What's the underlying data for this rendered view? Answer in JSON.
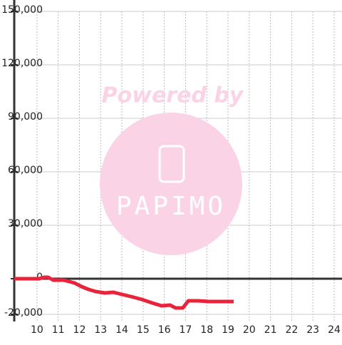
{
  "chart_data": {
    "type": "line",
    "watermark": {
      "line1": "Powered by",
      "line2": "PAPIMO"
    },
    "x": [
      8.93,
      10.1,
      10.33,
      10.53,
      10.77,
      11.27,
      11.77,
      12.1,
      12.43,
      12.77,
      13.2,
      13.6,
      14.0,
      14.43,
      14.93,
      15.43,
      15.87,
      16.27,
      16.53,
      16.87,
      17.13,
      17.6,
      18.1,
      19.27
    ],
    "series": [
      {
        "color": "#e8233a",
        "values": [
          0,
          0,
          800,
          800,
          -800,
          -800,
          -2400,
          -4400,
          -6000,
          -7200,
          -8000,
          -7600,
          -8800,
          -10000,
          -11600,
          -13600,
          -15200,
          -14800,
          -16400,
          -16400,
          -12400,
          -12400,
          -12800,
          -12800
        ]
      }
    ],
    "xlim": [
      8.93,
      24.37
    ],
    "xticks": [
      10,
      11,
      12,
      13,
      14,
      15,
      16,
      17,
      18,
      19,
      20,
      21,
      22,
      23,
      24
    ],
    "ylim": [
      -24000,
      150000
    ],
    "yticks": [
      {
        "value": -20000,
        "label": "-20,000"
      },
      0,
      {
        "value": 30000,
        "label": "30,000"
      },
      {
        "value": 60000,
        "label": "60,000"
      },
      {
        "value": 90000,
        "label": "90,000"
      },
      {
        "value": 120000,
        "label": "120,000"
      },
      {
        "value": 150000,
        "label": "150,000"
      }
    ],
    "grid": true
  }
}
